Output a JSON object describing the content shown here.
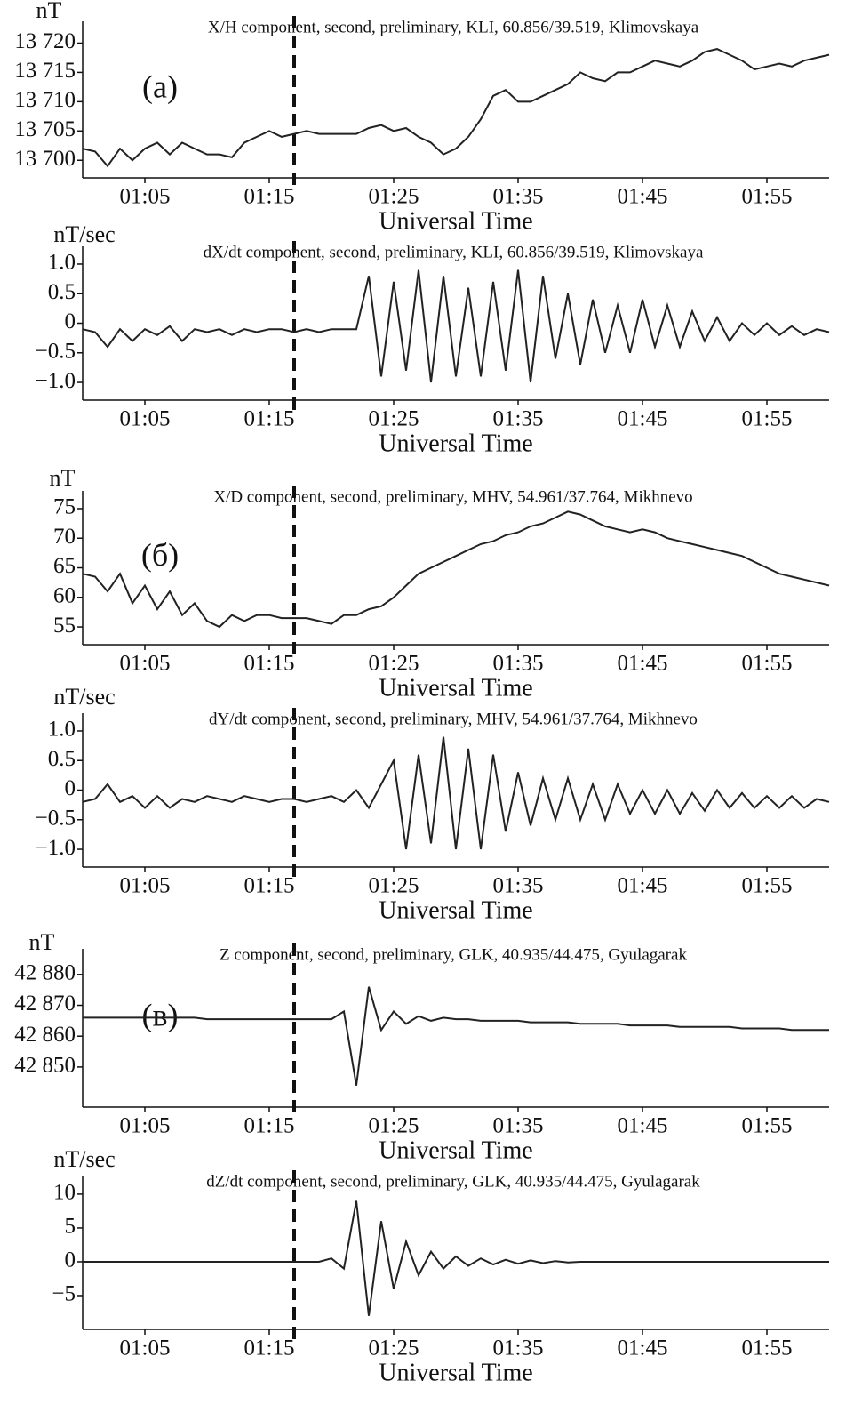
{
  "chart_data": [
    {
      "type": "line",
      "title": "X/H component, second, preliminary, KLI, 60.856/39.519, Klimovskaya",
      "ylabel": "nT",
      "xlabel": "Universal Time",
      "annotation": "(a)",
      "color": "#222",
      "x": [
        "01:00",
        "01:01",
        "01:02",
        "01:03",
        "01:04",
        "01:05",
        "01:06",
        "01:07",
        "01:08",
        "01:09",
        "01:10",
        "01:11",
        "01:12",
        "01:13",
        "01:14",
        "01:15",
        "01:16",
        "01:17",
        "01:18",
        "01:19",
        "01:20",
        "01:21",
        "01:22",
        "01:23",
        "01:24",
        "01:25",
        "01:26",
        "01:27",
        "01:28",
        "01:29",
        "01:30",
        "01:31",
        "01:32",
        "01:33",
        "01:34",
        "01:35",
        "01:36",
        "01:37",
        "01:38",
        "01:39",
        "01:40",
        "01:41",
        "01:42",
        "01:43",
        "01:44",
        "01:45",
        "01:46",
        "01:47",
        "01:48",
        "01:49",
        "01:50",
        "01:51",
        "01:52",
        "01:53",
        "01:54",
        "01:55",
        "01:56",
        "01:57",
        "01:58",
        "01:59",
        "02:00"
      ],
      "values": [
        13702,
        13701.5,
        13699,
        13702,
        13700,
        13702,
        13703,
        13701,
        13703,
        13702,
        13701,
        13701,
        13700.5,
        13703,
        13704,
        13705,
        13704,
        13704.5,
        13705,
        13704.5,
        13704.5,
        13704.5,
        13704.5,
        13705.5,
        13706,
        13705,
        13705.5,
        13704,
        13703,
        13701,
        13702,
        13704,
        13707,
        13711,
        13712,
        13710,
        13710,
        13711,
        13712,
        13713,
        13715,
        13714,
        13713.5,
        13715,
        13715,
        13716,
        13717,
        13716.5,
        13716,
        13717,
        13718.5,
        13719,
        13718,
        13717,
        13715.5,
        13716,
        13716.5,
        13716,
        13717,
        13717.5,
        13718
      ],
      "xlim": [
        "01:00",
        "02:00"
      ],
      "xticks": [
        "01:05",
        "01:15",
        "01:25",
        "01:35",
        "01:45",
        "01:55"
      ],
      "ylim": [
        13697,
        13722.5
      ],
      "yticks": [
        {
          "value": 13700,
          "label": "13 700"
        },
        {
          "value": 13705,
          "label": "13 705"
        },
        {
          "value": 13710,
          "label": "13 710"
        },
        {
          "value": 13715,
          "label": "13 715"
        },
        {
          "value": 13720,
          "label": "13 720"
        }
      ],
      "vline": "01:17"
    },
    {
      "type": "line",
      "title": "dX/dt component, second, preliminary, KLI, 60.856/39.519, Klimovskaya",
      "ylabel": "nT/sec",
      "xlabel": "Universal Time",
      "color": "#222",
      "x": [
        "01:00",
        "01:01",
        "01:02",
        "01:03",
        "01:04",
        "01:05",
        "01:06",
        "01:07",
        "01:08",
        "01:09",
        "01:10",
        "01:11",
        "01:12",
        "01:13",
        "01:14",
        "01:15",
        "01:16",
        "01:17",
        "01:18",
        "01:19",
        "01:20",
        "01:21",
        "01:22",
        "01:23",
        "01:24",
        "01:25",
        "01:26",
        "01:27",
        "01:28",
        "01:29",
        "01:30",
        "01:31",
        "01:32",
        "01:33",
        "01:34",
        "01:35",
        "01:36",
        "01:37",
        "01:38",
        "01:39",
        "01:40",
        "01:41",
        "01:42",
        "01:43",
        "01:44",
        "01:45",
        "01:46",
        "01:47",
        "01:48",
        "01:49",
        "01:50",
        "01:51",
        "01:52",
        "01:53",
        "01:54",
        "01:55",
        "01:56",
        "01:57",
        "01:58",
        "01:59",
        "02:00"
      ],
      "values": [
        -0.1,
        -0.15,
        -0.4,
        -0.1,
        -0.3,
        -0.1,
        -0.2,
        -0.05,
        -0.3,
        -0.1,
        -0.15,
        -0.1,
        -0.2,
        -0.1,
        -0.15,
        -0.1,
        -0.1,
        -0.15,
        -0.1,
        -0.15,
        -0.1,
        -0.1,
        -0.1,
        0.8,
        -0.9,
        0.7,
        -0.8,
        0.9,
        -1.0,
        0.8,
        -0.9,
        0.6,
        -0.9,
        0.7,
        -0.8,
        0.9,
        -1.0,
        0.8,
        -0.6,
        0.5,
        -0.7,
        0.4,
        -0.5,
        0.3,
        -0.5,
        0.4,
        -0.4,
        0.3,
        -0.4,
        0.2,
        -0.3,
        0.1,
        -0.3,
        0,
        -0.2,
        0,
        -0.2,
        -0.05,
        -0.2,
        -0.1,
        -0.15
      ],
      "xlim": [
        "01:00",
        "02:00"
      ],
      "xticks": [
        "01:05",
        "01:15",
        "01:25",
        "01:35",
        "01:45",
        "01:55"
      ],
      "ylim": [
        -1.3,
        1.18
      ],
      "yticks": [
        {
          "value": -1,
          "label": "−1.0"
        },
        {
          "value": -0.5,
          "label": "−0.5"
        },
        0,
        0.5,
        {
          "value": 1,
          "label": "1.0"
        }
      ],
      "vline": "01:17"
    },
    {
      "type": "line",
      "title": "X/D component, second, preliminary, MHV, 54.961/37.764, Mikhnevo",
      "ylabel": "nT",
      "xlabel": "Universal Time",
      "annotation": "(б)",
      "color": "#222",
      "x": [
        "01:00",
        "01:01",
        "01:02",
        "01:03",
        "01:04",
        "01:05",
        "01:06",
        "01:07",
        "01:08",
        "01:09",
        "01:10",
        "01:11",
        "01:12",
        "01:13",
        "01:14",
        "01:15",
        "01:16",
        "01:17",
        "01:18",
        "01:19",
        "01:20",
        "01:21",
        "01:22",
        "01:23",
        "01:24",
        "01:25",
        "01:26",
        "01:27",
        "01:28",
        "01:29",
        "01:30",
        "01:31",
        "01:32",
        "01:33",
        "01:34",
        "01:35",
        "01:36",
        "01:37",
        "01:38",
        "01:39",
        "01:40",
        "01:41",
        "01:42",
        "01:43",
        "01:44",
        "01:45",
        "01:46",
        "01:47",
        "01:48",
        "01:49",
        "01:50",
        "01:51",
        "01:52",
        "01:53",
        "01:54",
        "01:55",
        "01:56",
        "01:57",
        "01:58",
        "01:59",
        "02:00"
      ],
      "values": [
        64,
        63.5,
        61,
        64,
        59,
        62,
        58,
        61,
        57,
        59,
        56,
        55,
        57,
        56,
        57,
        57,
        56.5,
        56.5,
        56.5,
        56,
        55.5,
        57,
        57,
        58,
        58.5,
        60,
        62,
        64,
        65,
        66,
        67,
        68,
        69,
        69.5,
        70.5,
        71,
        72,
        72.5,
        73.5,
        74.5,
        74,
        73,
        72,
        71.5,
        71,
        71.5,
        71,
        70,
        69.5,
        69,
        68.5,
        68,
        67.5,
        67,
        66,
        65,
        64,
        63.5,
        63,
        62.5,
        62
      ],
      "xlim": [
        "01:00",
        "02:00"
      ],
      "xticks": [
        "01:05",
        "01:15",
        "01:25",
        "01:35",
        "01:45",
        "01:55"
      ],
      "ylim": [
        52,
        76.8
      ],
      "yticks": [
        55,
        60,
        65,
        70,
        75
      ],
      "vline": "01:17"
    },
    {
      "type": "line",
      "title": "dY/dt component, second, preliminary, MHV, 54.961/37.764, Mikhnevo",
      "ylabel": "nT/sec",
      "xlabel": "Universal Time",
      "color": "#222",
      "x": [
        "01:00",
        "01:01",
        "01:02",
        "01:03",
        "01:04",
        "01:05",
        "01:06",
        "01:07",
        "01:08",
        "01:09",
        "01:10",
        "01:11",
        "01:12",
        "01:13",
        "01:14",
        "01:15",
        "01:16",
        "01:17",
        "01:18",
        "01:19",
        "01:20",
        "01:21",
        "01:22",
        "01:23",
        "01:24",
        "01:25",
        "01:26",
        "01:27",
        "01:28",
        "01:29",
        "01:30",
        "01:31",
        "01:32",
        "01:33",
        "01:34",
        "01:35",
        "01:36",
        "01:37",
        "01:38",
        "01:39",
        "01:40",
        "01:41",
        "01:42",
        "01:43",
        "01:44",
        "01:45",
        "01:46",
        "01:47",
        "01:48",
        "01:49",
        "01:50",
        "01:51",
        "01:52",
        "01:53",
        "01:54",
        "01:55",
        "01:56",
        "01:57",
        "01:58",
        "01:59",
        "02:00"
      ],
      "values": [
        -0.2,
        -0.15,
        0.1,
        -0.2,
        -0.1,
        -0.3,
        -0.1,
        -0.3,
        -0.15,
        -0.2,
        -0.1,
        -0.15,
        -0.2,
        -0.1,
        -0.15,
        -0.2,
        -0.15,
        -0.15,
        -0.2,
        -0.15,
        -0.1,
        -0.2,
        0,
        -0.3,
        0.1,
        0.5,
        -1.0,
        0.6,
        -0.9,
        0.9,
        -1.0,
        0.7,
        -1.0,
        0.6,
        -0.7,
        0.3,
        -0.6,
        0.2,
        -0.5,
        0.2,
        -0.5,
        0.1,
        -0.5,
        0.1,
        -0.4,
        0,
        -0.4,
        0,
        -0.4,
        -0.05,
        -0.35,
        0,
        -0.3,
        -0.05,
        -0.3,
        -0.1,
        -0.3,
        -0.1,
        -0.3,
        -0.15,
        -0.2
      ],
      "xlim": [
        "01:00",
        "02:00"
      ],
      "xticks": [
        "01:05",
        "01:15",
        "01:25",
        "01:35",
        "01:45",
        "01:55"
      ],
      "ylim": [
        -1.3,
        1.18
      ],
      "yticks": [
        {
          "value": -1,
          "label": "−1.0"
        },
        {
          "value": -0.5,
          "label": "−0.5"
        },
        0,
        0.5,
        {
          "value": 1,
          "label": "1.0"
        }
      ],
      "vline": "01:17"
    },
    {
      "type": "line",
      "title": "Z component, second, preliminary, GLK, 40.935/44.475, Gyulagarak",
      "ylabel": "nT",
      "xlabel": "Universal Time",
      "annotation": "(в)",
      "color": "#222",
      "x": [
        "01:00",
        "01:01",
        "01:02",
        "01:03",
        "01:04",
        "01:05",
        "01:06",
        "01:07",
        "01:08",
        "01:09",
        "01:10",
        "01:11",
        "01:12",
        "01:13",
        "01:14",
        "01:15",
        "01:16",
        "01:17",
        "01:18",
        "01:19",
        "01:20",
        "01:21",
        "01:22",
        "01:23",
        "01:24",
        "01:25",
        "01:26",
        "01:27",
        "01:28",
        "01:29",
        "01:30",
        "01:31",
        "01:32",
        "01:33",
        "01:34",
        "01:35",
        "01:36",
        "01:37",
        "01:38",
        "01:39",
        "01:40",
        "01:41",
        "01:42",
        "01:43",
        "01:44",
        "01:45",
        "01:46",
        "01:47",
        "01:48",
        "01:49",
        "01:50",
        "01:51",
        "01:52",
        "01:53",
        "01:54",
        "01:55",
        "01:56",
        "01:57",
        "01:58",
        "01:59",
        "02:00"
      ],
      "values": [
        42866,
        42866,
        42866,
        42866,
        42866,
        42866,
        42866,
        42866,
        42866,
        42866,
        42865.5,
        42865.5,
        42865.5,
        42865.5,
        42865.5,
        42865.5,
        42865.5,
        42865.5,
        42865.5,
        42865.5,
        42865.5,
        42868,
        42844,
        42876,
        42862,
        42868,
        42864,
        42866.5,
        42865,
        42866,
        42865.5,
        42865.5,
        42865,
        42865,
        42865,
        42865,
        42864.5,
        42864.5,
        42864.5,
        42864.5,
        42864,
        42864,
        42864,
        42864,
        42863.5,
        42863.5,
        42863.5,
        42863.5,
        42863,
        42863,
        42863,
        42863,
        42863,
        42862.5,
        42862.5,
        42862.5,
        42862.5,
        42862,
        42862,
        42862,
        42862
      ],
      "xlim": [
        "01:00",
        "02:00"
      ],
      "xticks": [
        "01:05",
        "01:15",
        "01:25",
        "01:35",
        "01:45",
        "01:55"
      ],
      "ylim": [
        42837,
        42886
      ],
      "yticks": [
        {
          "value": 42850,
          "label": "42 850"
        },
        {
          "value": 42860,
          "label": "42 860"
        },
        {
          "value": 42870,
          "label": "42 870"
        },
        {
          "value": 42880,
          "label": "42 880"
        }
      ],
      "vline": "01:17"
    },
    {
      "type": "line",
      "title": "dZ/dt component, second, preliminary, GLK, 40.935/44.475, Gyulagarak",
      "ylabel": "nT/sec",
      "xlabel": "Universal Time",
      "color": "#222",
      "x": [
        "01:00",
        "01:01",
        "01:02",
        "01:03",
        "01:04",
        "01:05",
        "01:06",
        "01:07",
        "01:08",
        "01:09",
        "01:10",
        "01:11",
        "01:12",
        "01:13",
        "01:14",
        "01:15",
        "01:16",
        "01:17",
        "01:18",
        "01:19",
        "01:20",
        "01:21",
        "01:22",
        "01:23",
        "01:24",
        "01:25",
        "01:26",
        "01:27",
        "01:28",
        "01:29",
        "01:30",
        "01:31",
        "01:32",
        "01:33",
        "01:34",
        "01:35",
        "01:36",
        "01:37",
        "01:38",
        "01:39",
        "01:40",
        "01:41",
        "01:42",
        "01:43",
        "01:44",
        "01:45",
        "01:46",
        "01:47",
        "01:48",
        "01:49",
        "01:50",
        "01:51",
        "01:52",
        "01:53",
        "01:54",
        "01:55",
        "01:56",
        "01:57",
        "01:58",
        "01:59",
        "02:00"
      ],
      "values": [
        0,
        0,
        0,
        0,
        0,
        0,
        0,
        0,
        0,
        0,
        0,
        0,
        0,
        0,
        0,
        0,
        0,
        0,
        0,
        0,
        0.5,
        -1,
        9,
        -8,
        6,
        -4,
        3,
        -2,
        1.5,
        -1,
        0.8,
        -0.6,
        0.5,
        -0.4,
        0.3,
        -0.3,
        0.2,
        -0.2,
        0.1,
        -0.1,
        0,
        0,
        0,
        0,
        0,
        0,
        0,
        0,
        0,
        0,
        0,
        0,
        0,
        0,
        0,
        0,
        0,
        0,
        0,
        0,
        0
      ],
      "xlim": [
        "01:00",
        "02:00"
      ],
      "xticks": [
        "01:05",
        "01:15",
        "01:25",
        "01:35",
        "01:45",
        "01:55"
      ],
      "ylim": [
        -10,
        11.7
      ],
      "yticks": [
        {
          "value": -5,
          "label": "−5"
        },
        0,
        5,
        10
      ],
      "vline": "01:17"
    }
  ]
}
